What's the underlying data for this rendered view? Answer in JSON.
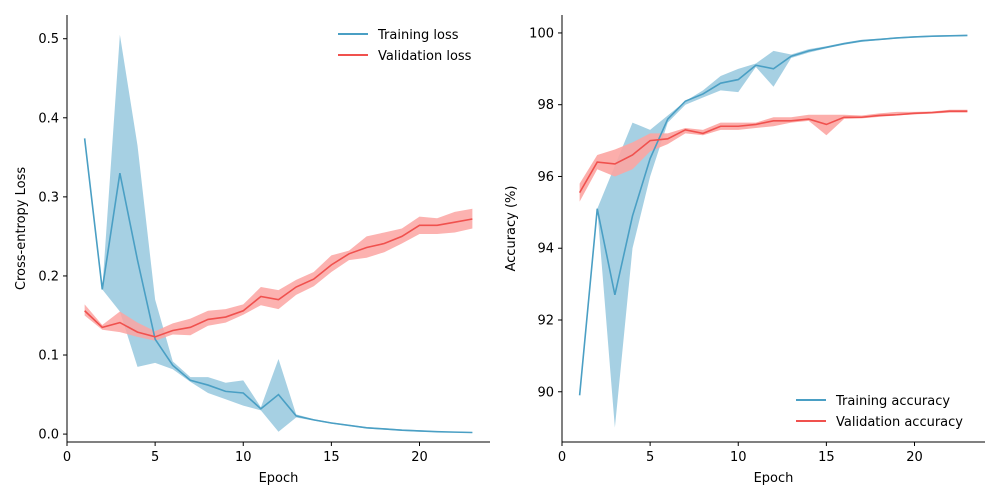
{
  "colors": {
    "training": "#4a9fc4",
    "training_band": "#9ccbe0",
    "validation": "#f0514e",
    "validation_band": "#fca5a2"
  },
  "chart_data": [
    {
      "type": "line",
      "xlabel": "Epoch",
      "ylabel": "Cross-entropy Loss",
      "xlim": [
        0,
        24
      ],
      "ylim": [
        -0.01,
        0.53
      ],
      "xticks": [
        0,
        5,
        10,
        15,
        20
      ],
      "yticks": [
        0.0,
        0.1,
        0.2,
        0.3,
        0.4,
        0.5
      ],
      "ytick_labels": [
        "0.0",
        "0.1",
        "0.2",
        "0.3",
        "0.4",
        "0.5"
      ],
      "legend_position": "top-right",
      "x": [
        1,
        2,
        3,
        4,
        5,
        6,
        7,
        8,
        9,
        10,
        11,
        12,
        13,
        14,
        15,
        16,
        17,
        18,
        19,
        20,
        21,
        22,
        23
      ],
      "series": [
        {
          "name": "Training loss",
          "color_key": "training",
          "band_key": "training_band",
          "values": [
            0.374,
            0.183,
            0.33,
            0.22,
            0.12,
            0.087,
            0.068,
            0.062,
            0.054,
            0.052,
            0.032,
            0.05,
            0.023,
            0.018,
            0.014,
            0.011,
            0.008,
            0.0065,
            0.005,
            0.004,
            0.003,
            0.0025,
            0.002
          ],
          "lower": [
            0.374,
            0.183,
            0.155,
            0.085,
            0.09,
            0.082,
            0.066,
            0.052,
            0.044,
            0.036,
            0.03,
            0.003,
            0.021,
            0.017,
            0.013,
            0.01,
            0.007,
            0.0055,
            0.004,
            0.003,
            0.0025,
            0.002,
            0.0015
          ],
          "upper": [
            0.374,
            0.183,
            0.505,
            0.365,
            0.17,
            0.092,
            0.072,
            0.072,
            0.065,
            0.068,
            0.034,
            0.095,
            0.025,
            0.019,
            0.015,
            0.012,
            0.009,
            0.0075,
            0.006,
            0.005,
            0.0035,
            0.003,
            0.0025
          ]
        },
        {
          "name": "Validation loss",
          "color_key": "validation",
          "band_key": "validation_band",
          "values": [
            0.156,
            0.135,
            0.141,
            0.129,
            0.123,
            0.131,
            0.135,
            0.145,
            0.148,
            0.156,
            0.174,
            0.17,
            0.186,
            0.196,
            0.214,
            0.228,
            0.236,
            0.241,
            0.25,
            0.264,
            0.264,
            0.268,
            0.272
          ],
          "lower": [
            0.15,
            0.132,
            0.129,
            0.123,
            0.118,
            0.126,
            0.125,
            0.137,
            0.141,
            0.151,
            0.163,
            0.158,
            0.176,
            0.187,
            0.205,
            0.22,
            0.223,
            0.23,
            0.241,
            0.253,
            0.253,
            0.255,
            0.26
          ],
          "upper": [
            0.164,
            0.138,
            0.155,
            0.141,
            0.13,
            0.14,
            0.146,
            0.156,
            0.158,
            0.164,
            0.186,
            0.182,
            0.195,
            0.205,
            0.226,
            0.232,
            0.25,
            0.255,
            0.26,
            0.275,
            0.273,
            0.281,
            0.285
          ]
        }
      ]
    },
    {
      "type": "line",
      "xlabel": "Epoch",
      "ylabel": "Accuracy (%)",
      "xlim": [
        0,
        24
      ],
      "ylim": [
        88.6,
        100.5
      ],
      "xticks": [
        0,
        5,
        10,
        15,
        20
      ],
      "yticks": [
        90,
        92,
        94,
        96,
        98,
        100
      ],
      "ytick_labels": [
        "90",
        "92",
        "94",
        "96",
        "98",
        "100"
      ],
      "legend_position": "bottom-right",
      "x": [
        1,
        2,
        3,
        4,
        5,
        6,
        7,
        8,
        9,
        10,
        11,
        12,
        13,
        14,
        15,
        16,
        17,
        18,
        19,
        20,
        21,
        22,
        23
      ],
      "series": [
        {
          "name": "Training accuracy",
          "color_key": "training",
          "band_key": "training_band",
          "values": [
            89.9,
            95.1,
            92.7,
            94.9,
            96.5,
            97.6,
            98.1,
            98.3,
            98.6,
            98.7,
            99.1,
            99.0,
            99.35,
            99.5,
            99.6,
            99.7,
            99.78,
            99.82,
            99.86,
            99.89,
            99.91,
            99.92,
            99.93
          ],
          "lower": [
            89.9,
            95.1,
            89.0,
            94.0,
            96.0,
            97.5,
            98.0,
            98.2,
            98.4,
            98.35,
            99.05,
            98.5,
            99.3,
            99.45,
            99.57,
            99.67,
            99.75,
            99.8,
            99.84,
            99.87,
            99.89,
            99.9,
            99.91
          ],
          "upper": [
            89.9,
            95.1,
            96.3,
            97.5,
            97.3,
            97.7,
            98.1,
            98.4,
            98.8,
            99.0,
            99.15,
            99.5,
            99.4,
            99.55,
            99.63,
            99.73,
            99.81,
            99.84,
            99.88,
            99.91,
            99.93,
            99.94,
            99.95
          ]
        },
        {
          "name": "Validation accuracy",
          "color_key": "validation",
          "band_key": "validation_band",
          "values": [
            95.55,
            96.4,
            96.35,
            96.6,
            97.0,
            97.05,
            97.3,
            97.2,
            97.4,
            97.4,
            97.45,
            97.55,
            97.55,
            97.6,
            97.45,
            97.65,
            97.65,
            97.7,
            97.72,
            97.76,
            97.78,
            97.82,
            97.82
          ],
          "lower": [
            95.3,
            96.2,
            96.0,
            96.2,
            96.7,
            96.9,
            97.2,
            97.15,
            97.3,
            97.3,
            97.35,
            97.4,
            97.5,
            97.55,
            97.15,
            97.6,
            97.62,
            97.66,
            97.7,
            97.73,
            97.75,
            97.78,
            97.78
          ],
          "upper": [
            95.8,
            96.6,
            96.75,
            96.95,
            97.2,
            97.2,
            97.35,
            97.3,
            97.5,
            97.5,
            97.5,
            97.65,
            97.65,
            97.72,
            97.72,
            97.72,
            97.7,
            97.76,
            97.8,
            97.8,
            97.81,
            97.86,
            97.86
          ]
        }
      ]
    }
  ]
}
